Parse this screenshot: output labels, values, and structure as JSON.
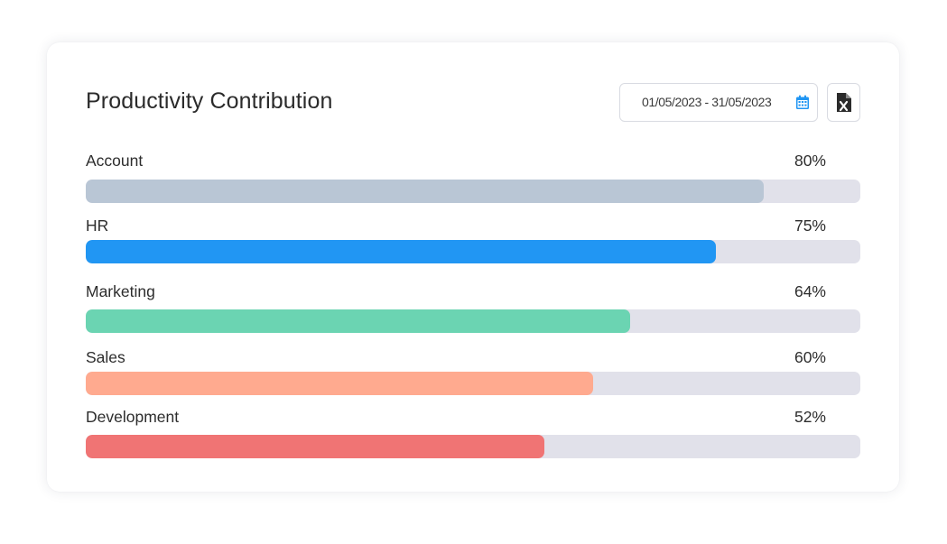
{
  "card": {
    "title": "Productivity Contribution",
    "date_range": "01/05/2023 - 31/05/2023",
    "date_icon": "calendar-icon",
    "export_icon": "excel-file-icon",
    "accent_color": "#2196f3"
  },
  "departments": [
    {
      "label": "Account",
      "percent_text": "80%",
      "fill_fraction": 0.875,
      "color": "#b9c6d5"
    },
    {
      "label": "HR",
      "percent_text": "75%",
      "fill_fraction": 0.814,
      "color": "#2196f3"
    },
    {
      "label": "Marketing",
      "percent_text": "64%",
      "fill_fraction": 0.703,
      "color": "#6bd4b2"
    },
    {
      "label": "Sales",
      "percent_text": "60%",
      "fill_fraction": 0.655,
      "color": "#ffaa8f"
    },
    {
      "label": "Development",
      "percent_text": "52%",
      "fill_fraction": 0.592,
      "color": "#f07474"
    }
  ]
}
